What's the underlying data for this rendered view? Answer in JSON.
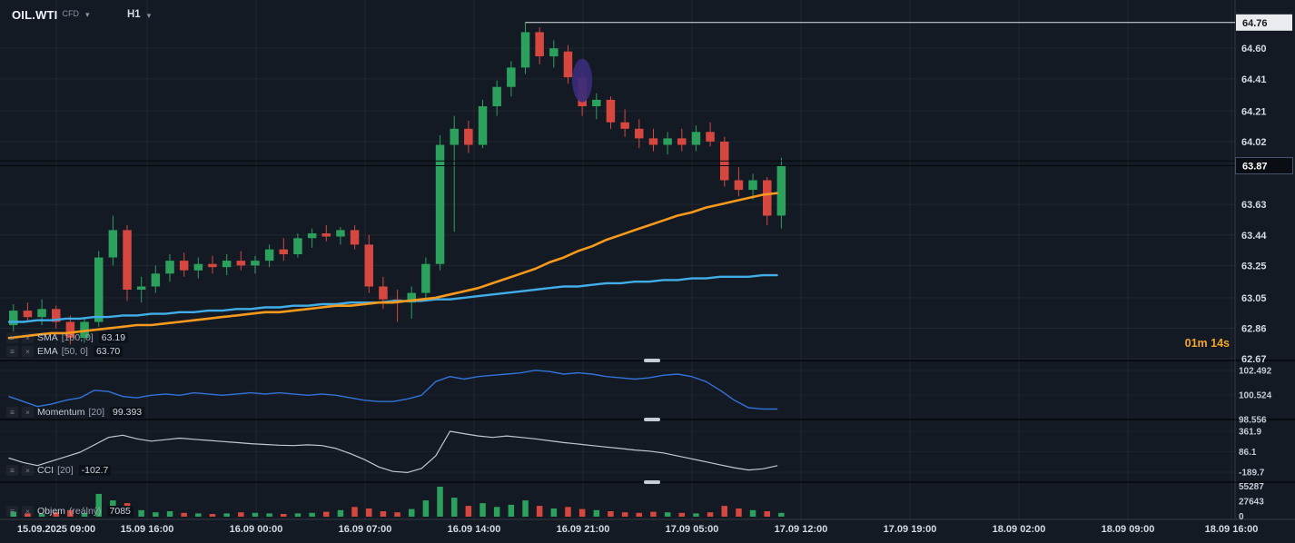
{
  "header": {
    "symbol": "OIL.WTI",
    "symbol_type": "CFD",
    "timeframe": "H1"
  },
  "timer": "01m 14s",
  "indicators": {
    "sma": {
      "label": "SMA",
      "params": "[100, 0]",
      "value": "63.19"
    },
    "ema": {
      "label": "EMA",
      "params": "[50, 0]",
      "value": "63.70"
    },
    "momentum": {
      "label": "Momentum",
      "params": "[20]",
      "value": "99.393"
    },
    "cci": {
      "label": "CCI",
      "params": "[20]",
      "value": "-102.7"
    },
    "volume": {
      "label": "Objem",
      "params": "(reálný)",
      "value": "7085"
    }
  },
  "price_axis": {
    "ticks": [
      "64.60",
      "64.41",
      "64.21",
      "64.02",
      "63.63",
      "63.44",
      "63.25",
      "63.05",
      "62.86",
      "62.67"
    ],
    "current_price": "63.87",
    "high_line_price": "64.76"
  },
  "momentum_axis": [
    "102.492",
    "100.524",
    "98.556"
  ],
  "cci_axis": [
    "361.9",
    "86.1",
    "-189.7"
  ],
  "volume_axis": [
    "55287",
    "27643",
    "0"
  ],
  "time_axis": [
    "15.09.2025 09:00",
    "15.09 16:00",
    "16.09 00:00",
    "16.09 07:00",
    "16.09 14:00",
    "16.09 21:00",
    "17.09 05:00",
    "17.09 12:00",
    "17.09 19:00",
    "18.09 02:00",
    "18.09 09:00",
    "18.09 16:00"
  ],
  "colors": {
    "background": "#141a23",
    "grid": "rgba(255,255,255,0.055)",
    "grid_faint": "rgba(255,255,255,0.04)",
    "up": "#2ba15d",
    "down": "#d6483f",
    "ema": "#f6991c",
    "sma": "#41aee9",
    "momentum": "#3272d9",
    "cci": "#c2c8d2",
    "axis_text": "#d5dbe5",
    "subaxis_text": "#c3cad6",
    "timer": "#f5a623",
    "current_price_bg": "#0a0e14",
    "high_label_bg": "#e9ebef",
    "high_line": "#dfe3ea",
    "dark_line": "#05070b",
    "separator": "#05070b",
    "annotation": "#3a2c7a"
  },
  "chart_data": {
    "type": "candlestick",
    "symbol": "OIL.WTI",
    "timeframe": "H1",
    "x_start": "15.09.2025 05:00",
    "interval_hours": 1,
    "ylim_main": [
      62.66,
      64.9
    ],
    "momentum_range": [
      98.556,
      103.29
    ],
    "cci_range": [
      -325,
      522
    ],
    "volume_max": 55287,
    "current_price": 63.87,
    "price_lines": [
      63.9
    ],
    "high_line": {
      "price": 64.76,
      "from_index": 36
    },
    "annotations": [
      {
        "type": "ellipse",
        "index": 40,
        "price_center": 64.4
      }
    ],
    "ohlc": [
      [
        62.88,
        63.01,
        62.84,
        62.97
      ],
      [
        62.97,
        63.02,
        62.9,
        62.93
      ],
      [
        62.93,
        63.04,
        62.88,
        62.98
      ],
      [
        62.98,
        63.0,
        62.86,
        62.9
      ],
      [
        62.9,
        62.94,
        62.76,
        62.8
      ],
      [
        62.8,
        62.93,
        62.77,
        62.9
      ],
      [
        62.9,
        63.34,
        62.87,
        63.3
      ],
      [
        63.3,
        63.56,
        63.25,
        63.47
      ],
      [
        63.47,
        63.5,
        63.03,
        63.1
      ],
      [
        63.1,
        63.18,
        63.02,
        63.12
      ],
      [
        63.12,
        63.25,
        63.08,
        63.2
      ],
      [
        63.2,
        63.32,
        63.15,
        63.28
      ],
      [
        63.28,
        63.33,
        63.18,
        63.22
      ],
      [
        63.22,
        63.3,
        63.17,
        63.26
      ],
      [
        63.26,
        63.31,
        63.2,
        63.24
      ],
      [
        63.24,
        63.32,
        63.19,
        63.28
      ],
      [
        63.28,
        63.34,
        63.22,
        63.25
      ],
      [
        63.25,
        63.31,
        63.2,
        63.28
      ],
      [
        63.28,
        63.38,
        63.24,
        63.35
      ],
      [
        63.35,
        63.42,
        63.28,
        63.32
      ],
      [
        63.32,
        63.45,
        63.3,
        63.42
      ],
      [
        63.42,
        63.48,
        63.36,
        63.45
      ],
      [
        63.45,
        63.5,
        63.4,
        63.43
      ],
      [
        63.43,
        63.49,
        63.38,
        63.47
      ],
      [
        63.47,
        63.5,
        63.35,
        63.38
      ],
      [
        63.38,
        63.44,
        63.08,
        63.12
      ],
      [
        63.12,
        63.18,
        62.98,
        63.04
      ],
      [
        63.04,
        63.1,
        62.9,
        63.02
      ],
      [
        63.02,
        63.12,
        62.92,
        63.08
      ],
      [
        63.08,
        63.3,
        63.03,
        63.26
      ],
      [
        63.26,
        64.06,
        63.22,
        64.0
      ],
      [
        64.0,
        64.18,
        63.46,
        64.1
      ],
      [
        64.1,
        64.15,
        63.95,
        64.0
      ],
      [
        64.0,
        64.28,
        63.98,
        64.24
      ],
      [
        64.24,
        64.4,
        64.18,
        64.36
      ],
      [
        64.36,
        64.52,
        64.3,
        64.48
      ],
      [
        64.48,
        64.76,
        64.44,
        64.7
      ],
      [
        64.7,
        64.73,
        64.5,
        64.55
      ],
      [
        64.55,
        64.65,
        64.48,
        64.6
      ],
      [
        64.58,
        64.62,
        64.38,
        64.42
      ],
      [
        64.42,
        64.46,
        64.18,
        64.24
      ],
      [
        64.24,
        64.32,
        64.16,
        64.28
      ],
      [
        64.28,
        64.3,
        64.1,
        64.14
      ],
      [
        64.14,
        64.22,
        64.05,
        64.1
      ],
      [
        64.1,
        64.16,
        63.98,
        64.04
      ],
      [
        64.04,
        64.1,
        63.96,
        64.0
      ],
      [
        64.0,
        64.08,
        63.94,
        64.04
      ],
      [
        64.04,
        64.1,
        63.96,
        64.0
      ],
      [
        64.0,
        64.12,
        63.96,
        64.08
      ],
      [
        64.08,
        64.14,
        63.99,
        64.02
      ],
      [
        64.02,
        64.05,
        63.74,
        63.78
      ],
      [
        63.78,
        63.86,
        63.68,
        63.72
      ],
      [
        63.72,
        63.82,
        63.66,
        63.78
      ],
      [
        63.78,
        63.8,
        63.5,
        63.56
      ],
      [
        63.56,
        63.92,
        63.48,
        63.87
      ]
    ],
    "overlays": {
      "ema_50": [
        62.8,
        62.81,
        62.82,
        62.83,
        62.83,
        62.84,
        62.85,
        62.86,
        62.87,
        62.88,
        62.88,
        62.89,
        62.9,
        62.91,
        62.92,
        62.93,
        62.94,
        62.95,
        62.96,
        62.96,
        62.97,
        62.98,
        62.99,
        63.0,
        63.0,
        63.01,
        63.02,
        63.02,
        63.03,
        63.04,
        63.05,
        63.07,
        63.09,
        63.11,
        63.14,
        63.17,
        63.2,
        63.23,
        63.27,
        63.3,
        63.34,
        63.37,
        63.41,
        63.44,
        63.47,
        63.5,
        63.53,
        63.56,
        63.58,
        63.61,
        63.63,
        63.65,
        63.67,
        63.69,
        63.7
      ],
      "sma_100": [
        62.9,
        62.9,
        62.91,
        62.91,
        62.92,
        62.92,
        62.93,
        62.93,
        62.94,
        62.94,
        62.95,
        62.95,
        62.96,
        62.96,
        62.97,
        62.97,
        62.98,
        62.98,
        62.99,
        62.99,
        63.0,
        63.0,
        63.01,
        63.01,
        63.02,
        63.02,
        63.02,
        63.03,
        63.03,
        63.03,
        63.04,
        63.04,
        63.05,
        63.06,
        63.07,
        63.08,
        63.09,
        63.1,
        63.11,
        63.12,
        63.12,
        63.13,
        63.14,
        63.14,
        63.15,
        63.15,
        63.16,
        63.16,
        63.17,
        63.17,
        63.18,
        63.18,
        63.18,
        63.19,
        63.19
      ]
    },
    "momentum_20": [
      100.4,
      100.0,
      99.6,
      99.8,
      100.1,
      100.3,
      100.9,
      100.8,
      100.4,
      100.3,
      100.5,
      100.6,
      100.5,
      100.7,
      100.6,
      100.5,
      100.6,
      100.7,
      100.6,
      100.7,
      100.6,
      100.5,
      100.6,
      100.5,
      100.3,
      100.1,
      100.0,
      100.0,
      100.2,
      100.5,
      101.6,
      102.0,
      101.8,
      102.0,
      102.1,
      102.2,
      102.3,
      102.5,
      102.4,
      102.2,
      102.3,
      102.2,
      102.0,
      101.9,
      101.8,
      101.9,
      102.1,
      102.2,
      102.0,
      101.6,
      100.9,
      100.1,
      99.5,
      99.4,
      99.393
    ],
    "cci_20": [
      0,
      -60,
      -100,
      -40,
      20,
      80,
      180,
      280,
      310,
      260,
      230,
      250,
      270,
      255,
      240,
      225,
      210,
      195,
      185,
      175,
      170,
      180,
      170,
      130,
      60,
      -20,
      -120,
      -180,
      -195,
      -140,
      30,
      362,
      330,
      300,
      280,
      300,
      280,
      260,
      235,
      210,
      190,
      170,
      150,
      130,
      110,
      95,
      70,
      30,
      -10,
      -50,
      -90,
      -130,
      -160,
      -145,
      -102.7
    ],
    "volume": [
      9000,
      6000,
      5000,
      8000,
      12000,
      7000,
      42000,
      30000,
      25000,
      12000,
      8000,
      10000,
      7000,
      6000,
      5000,
      6000,
      8000,
      7000,
      6000,
      5000,
      6000,
      7000,
      9000,
      12000,
      18000,
      15000,
      10000,
      8000,
      14000,
      30000,
      55287,
      35000,
      20000,
      25000,
      18000,
      22000,
      30000,
      20000,
      15000,
      18000,
      14000,
      12000,
      10000,
      8000,
      7000,
      9000,
      8000,
      7000,
      6000,
      8000,
      20000,
      15000,
      12000,
      10000,
      7085
    ]
  }
}
